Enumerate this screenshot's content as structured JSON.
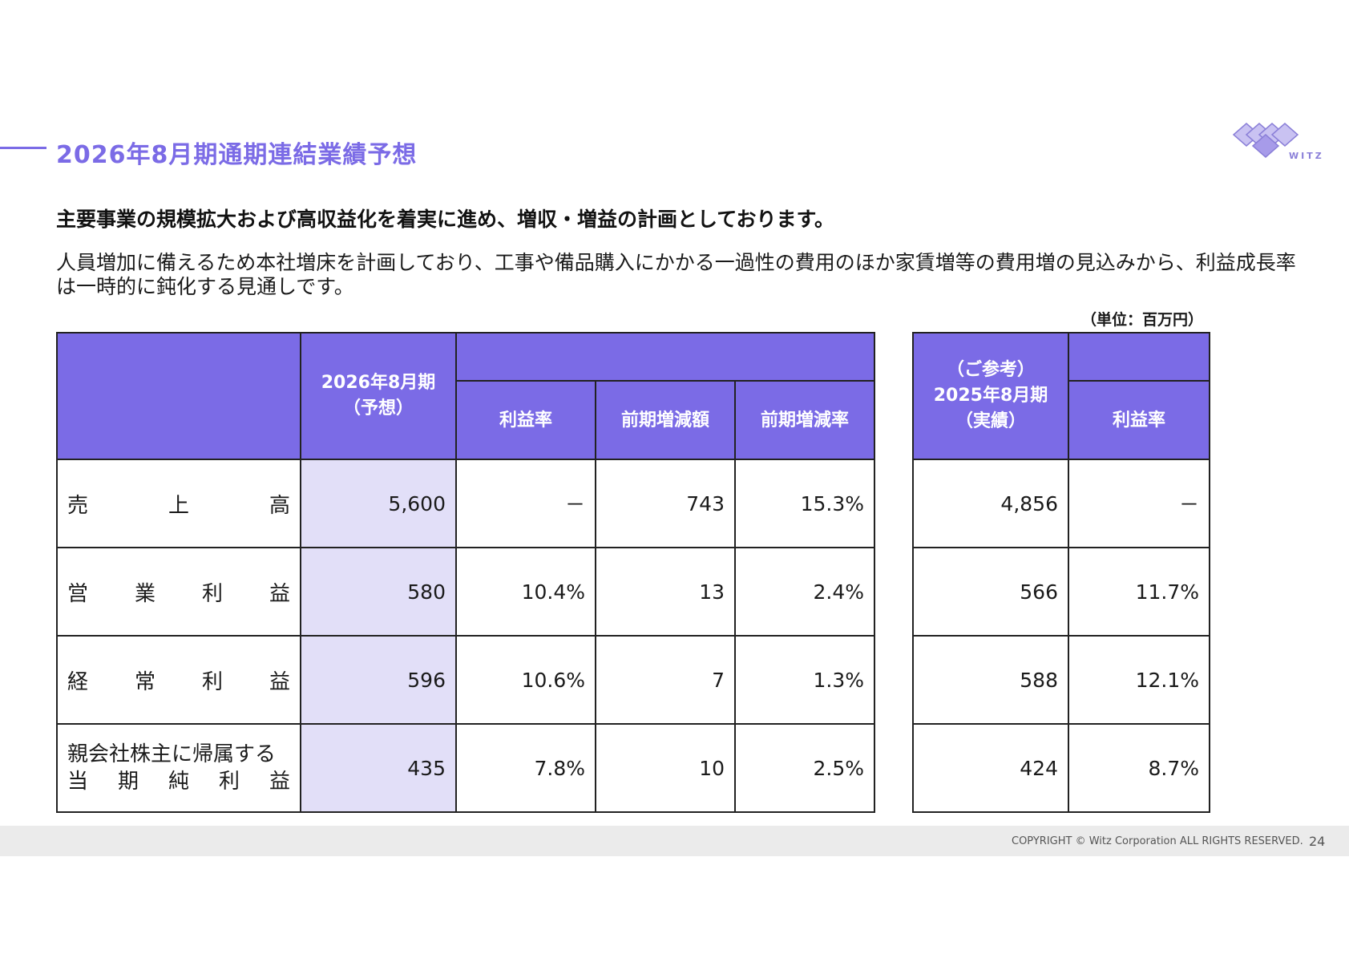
{
  "header": {
    "title": "2026年8月期通期連結業績予想",
    "logo_text": "WITZ"
  },
  "headline": "主要事業の規模拡大および高収益化を着実に進め、増収・増益の計画としております。",
  "body": "人員増加に備えるため本社増床を計画しており、工事や備品購入にかかる一過性の費用のほか家賃増等の費用増の見込みから、利益成長率は一時的に鈍化する見通しです。",
  "unit": "（単位：百万円）",
  "forecast_table": {
    "header_main_line1": "2026年8月期",
    "header_main_line2": "（予想）",
    "col_margin": "利益率",
    "col_diff": "前期増減額",
    "col_rate": "前期増減率",
    "rows": [
      {
        "label_chars": [
          "売",
          "上",
          "高"
        ],
        "value": "5,600",
        "margin": "－",
        "diff": "743",
        "rate": "15.3%"
      },
      {
        "label_chars": [
          "営",
          "業",
          "利",
          "益"
        ],
        "value": "580",
        "margin": "10.4%",
        "diff": "13",
        "rate": "2.4%"
      },
      {
        "label_chars": [
          "経",
          "常",
          "利",
          "益"
        ],
        "value": "596",
        "margin": "10.6%",
        "diff": "7",
        "rate": "1.3%"
      },
      {
        "label_line1": "親会社株主に帰属する",
        "label_chars": [
          "当",
          "期",
          "純",
          "利",
          "益"
        ],
        "value": "435",
        "margin": "7.8%",
        "diff": "10",
        "rate": "2.5%"
      }
    ]
  },
  "reference_table": {
    "header_line1": "（ご参考）",
    "header_line2": "2025年8月期",
    "header_line3": "（実績）",
    "col_margin": "利益率",
    "rows": [
      {
        "value": "4,856",
        "margin": "－"
      },
      {
        "value": "566",
        "margin": "11.7%"
      },
      {
        "value": "588",
        "margin": "12.1%"
      },
      {
        "value": "424",
        "margin": "8.7%"
      }
    ]
  },
  "footer": {
    "copyright": "COPYRIGHT © Witz Corporation ALL RIGHTS RESERVED.",
    "page_number": "24"
  },
  "colors": {
    "accent": "#7b6be6",
    "highlight": "#e2dff8"
  }
}
